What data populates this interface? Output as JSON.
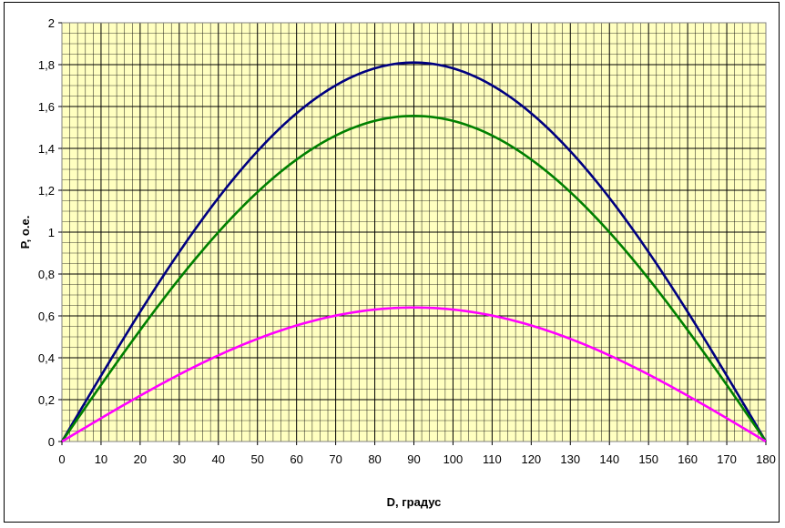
{
  "chart_data": {
    "type": "line",
    "title": "",
    "xlabel": "D, градус",
    "ylabel": "P, о.е.",
    "xlim": [
      0,
      180
    ],
    "ylim": [
      0,
      2
    ],
    "x_ticks": [
      "0",
      "10",
      "20",
      "30",
      "40",
      "50",
      "60",
      "70",
      "80",
      "90",
      "100",
      "110",
      "120",
      "130",
      "140",
      "150",
      "160",
      "170",
      "180"
    ],
    "y_ticks": [
      "0",
      "0,2",
      "0,4",
      "0,6",
      "0,8",
      "1",
      "1,2",
      "1,4",
      "1,6",
      "1,8",
      "2"
    ],
    "grid": true,
    "plot_background": "#FFFFC0",
    "x": [
      0,
      10,
      20,
      30,
      40,
      50,
      60,
      70,
      80,
      90,
      100,
      110,
      120,
      130,
      140,
      150,
      160,
      170,
      180
    ],
    "series": [
      {
        "color": "#000080",
        "values": [
          0,
          0.314,
          0.619,
          0.905,
          1.163,
          1.386,
          1.567,
          1.7,
          1.783,
          1.81,
          1.783,
          1.7,
          1.567,
          1.386,
          1.163,
          0.905,
          0.619,
          0.314,
          0
        ]
      },
      {
        "color": "#008000",
        "values": [
          0,
          0.27,
          0.532,
          0.778,
          1.0,
          1.191,
          1.346,
          1.461,
          1.532,
          1.555,
          1.532,
          1.461,
          1.346,
          1.191,
          1.0,
          0.778,
          0.532,
          0.27,
          0
        ]
      },
      {
        "color": "#FF00FF",
        "values": [
          0,
          0.111,
          0.219,
          0.32,
          0.411,
          0.49,
          0.554,
          0.601,
          0.63,
          0.64,
          0.63,
          0.601,
          0.554,
          0.49,
          0.411,
          0.32,
          0.219,
          0.111,
          0
        ]
      }
    ]
  }
}
